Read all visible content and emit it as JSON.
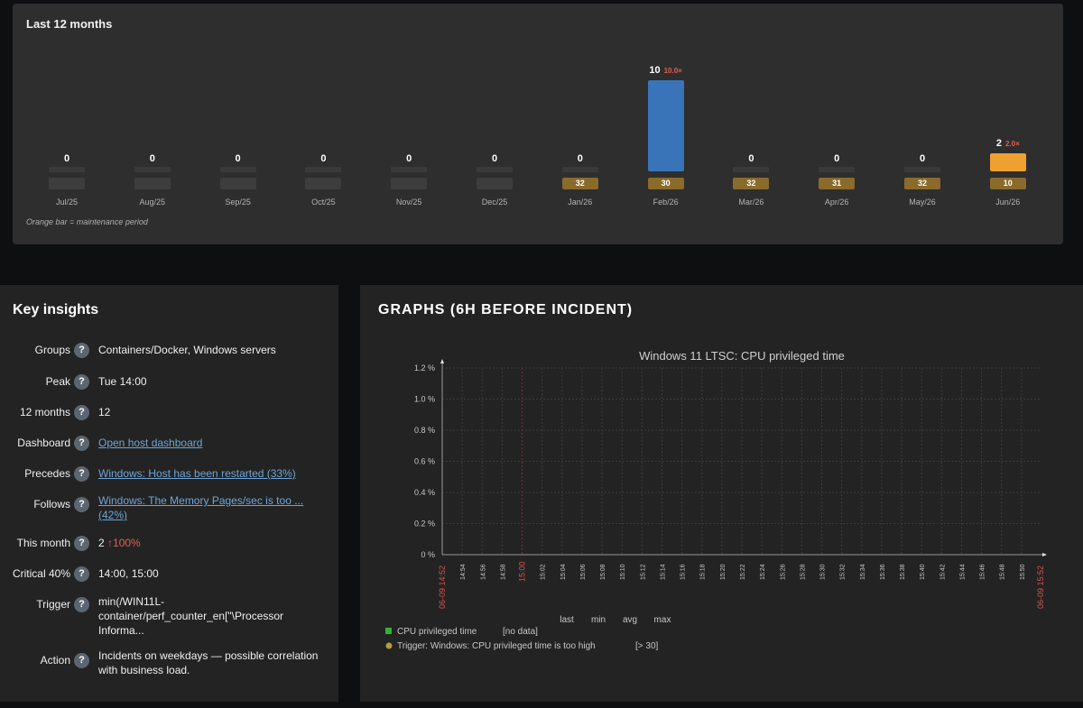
{
  "months_panel": {
    "title": "Last 12 months",
    "note": "Orange bar = maintenance period",
    "months": [
      {
        "label": "Jul/25",
        "count": "0",
        "pct": "",
        "maintenance": ""
      },
      {
        "label": "Aug/25",
        "count": "0",
        "pct": "",
        "maintenance": ""
      },
      {
        "label": "Sep/25",
        "count": "0",
        "pct": "",
        "maintenance": ""
      },
      {
        "label": "Oct/25",
        "count": "0",
        "pct": "",
        "maintenance": ""
      },
      {
        "label": "Nov/25",
        "count": "0",
        "pct": "",
        "maintenance": ""
      },
      {
        "label": "Dec/25",
        "count": "0",
        "pct": "",
        "maintenance": ""
      },
      {
        "label": "Jan/26",
        "count": "0",
        "pct": "",
        "maintenance": "32"
      },
      {
        "label": "Feb/26",
        "count": "10",
        "pct": "10.0×",
        "maintenance": "30"
      },
      {
        "label": "Mar/26",
        "count": "0",
        "pct": "",
        "maintenance": "32"
      },
      {
        "label": "Apr/26",
        "count": "0",
        "pct": "",
        "maintenance": "31"
      },
      {
        "label": "May/26",
        "count": "0",
        "pct": "",
        "maintenance": "32"
      },
      {
        "label": "Jun/26",
        "count": "2",
        "pct": "2.0×",
        "maintenance": "10"
      }
    ],
    "colors": {
      "normal_bar": "#3a74b8",
      "maintenance_bar": "#f0a030"
    }
  },
  "insights": {
    "title": "Key insights",
    "help_glyph": "?",
    "groups": {
      "label": "Groups",
      "value": "Containers/Docker, Windows servers"
    },
    "peak": {
      "label": "Peak",
      "value": "Tue 14:00"
    },
    "twelve_months": {
      "label": "12 months",
      "value": "12"
    },
    "dashboard": {
      "label": "Dashboard",
      "value": "Open host dashboard"
    },
    "precedes": {
      "label": "Precedes",
      "value": "Windows: Host has been restarted (33%)"
    },
    "follows": {
      "label": "Follows",
      "value_line1": "Windows: The Memory Pages/sec is too ...",
      "value_line2": "(42%)"
    },
    "this_month": {
      "label": "This month",
      "value": "2",
      "change": "↑100%"
    },
    "critical": {
      "label": "Critical 40%",
      "value": "14:00, 15:00"
    },
    "trigger": {
      "label": "Trigger",
      "line1": "min(/WIN11L-",
      "line2": "container/perf_counter_en[\"\\Processor",
      "line3": "Informa..."
    },
    "action": {
      "label": "Action",
      "line1": "Incidents on weekdays — possible correlation",
      "line2": "with business load."
    }
  },
  "graphs": {
    "title": "GRAPHS (6H BEFORE INCIDENT)",
    "chart_title": "Windows 11 LTSC: CPU privileged time",
    "y_ticks": [
      "1.2 %",
      "1.0 %",
      "0.8 %",
      "0.6 %",
      "0.4 %",
      "0.2 %",
      "0 %"
    ],
    "x_start_label": "06-09 14:52",
    "x_end_label": "06-09 15:52",
    "x_ticks": [
      "14:54",
      "14:56",
      "14:58",
      "15:00",
      "15:02",
      "15:04",
      "15:06",
      "15:08",
      "15:10",
      "15:12",
      "15:14",
      "15:16",
      "15:18",
      "15:20",
      "15:22",
      "15:24",
      "15:26",
      "15:28",
      "15:30",
      "15:32",
      "15:34",
      "15:36",
      "15:38",
      "15:40",
      "15:42",
      "15:44",
      "15:46",
      "15:48",
      "15:50"
    ],
    "legend_columns": [
      "last",
      "min",
      "avg",
      "max"
    ],
    "legend": [
      {
        "name": "CPU privileged time",
        "value": "[no data]",
        "color": "#2fb52f",
        "icon": "square-icon"
      },
      {
        "name": "Trigger: Windows: CPU privileged time is too high",
        "value": "[> 30]",
        "color": "#b59b3c",
        "icon": "circle-icon"
      }
    ],
    "colors": {
      "axis": "#9a9a9a",
      "grid": "#3c3c3c",
      "highlight_tick": "#d9534f",
      "text": "#c8c8c8"
    }
  }
}
